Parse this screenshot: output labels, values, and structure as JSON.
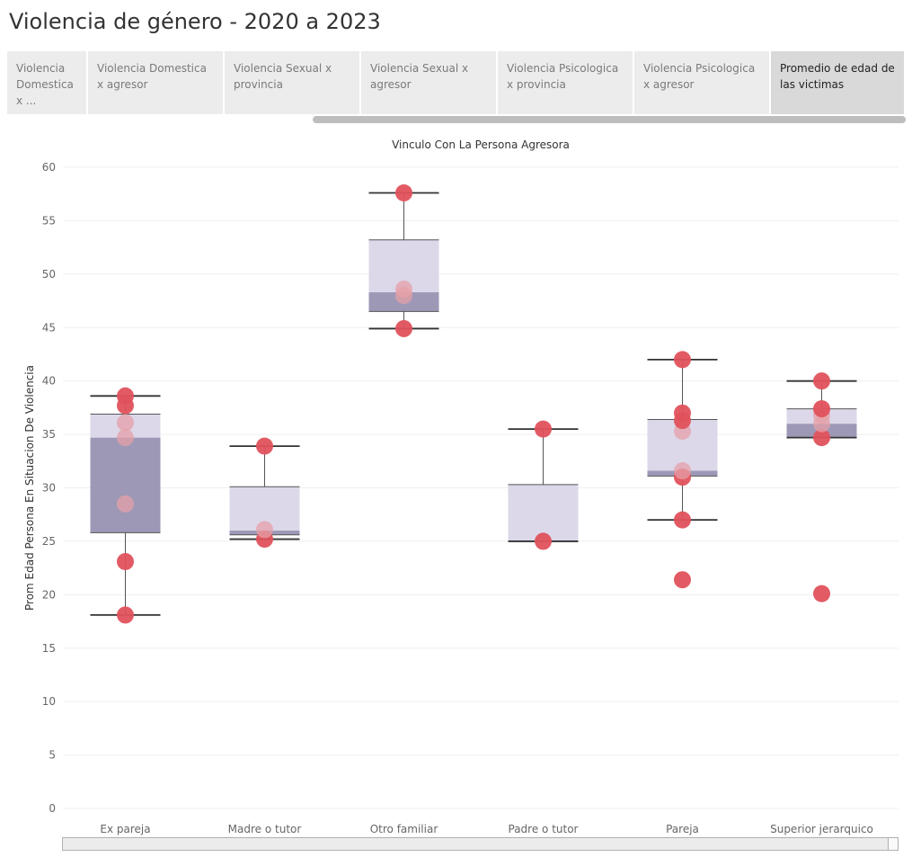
{
  "page": {
    "title": "Violencia de género - 2020 a 2023"
  },
  "tabs": [
    {
      "label": "Violencia Domestica x ...",
      "active": false,
      "width": 90
    },
    {
      "label": "Violencia Domestica x agresor",
      "active": false,
      "width": 152
    },
    {
      "label": "Violencia Sexual x provincia",
      "active": false,
      "width": 152
    },
    {
      "label": "Violencia Sexual x agresor",
      "active": false,
      "width": 152
    },
    {
      "label": "Violencia Psicologica x provincia",
      "active": false,
      "width": 152
    },
    {
      "label": "Violencia Psicologica x agresor",
      "active": false,
      "width": 152
    },
    {
      "label": "Promedio de edad de las victimas",
      "active": true,
      "width": 150
    }
  ],
  "chart_data": {
    "type": "boxplot",
    "title": "Vinculo Con La Persona Agresora",
    "ylabel": "Prom Edad Persona En Situacion De Violencia",
    "ylim": [
      0,
      60
    ],
    "yticks": [
      0,
      5,
      10,
      15,
      20,
      25,
      30,
      35,
      40,
      45,
      50,
      55,
      60
    ],
    "grid": true,
    "colors": {
      "upper_box": "#dcd8ea",
      "lower_box": "#9d98b6",
      "point": "#e0525c",
      "point_light": "#e6a0a8"
    },
    "categories": [
      {
        "name": "Ex pareja",
        "whisker_low": 18.1,
        "q1": 25.8,
        "median": 34.7,
        "q3": 36.9,
        "whisker_high": 38.6,
        "points": [
          18.1,
          23.1,
          28.5,
          34.7,
          36.1,
          37.7,
          38.6
        ]
      },
      {
        "name": "Madre o tutor",
        "whisker_low": 25.2,
        "q1": 25.6,
        "median": 26.0,
        "q3": 30.1,
        "whisker_high": 33.9,
        "points": [
          25.2,
          26.1,
          33.9
        ]
      },
      {
        "name": "Otro familiar",
        "whisker_low": 44.9,
        "q1": 46.5,
        "median": 48.3,
        "q3": 53.2,
        "whisker_high": 57.6,
        "points": [
          44.9,
          48.0,
          48.6,
          57.6
        ]
      },
      {
        "name": "Padre o tutor",
        "whisker_low": 25.0,
        "q1": 25.0,
        "median": 25.0,
        "q3": 30.3,
        "whisker_high": 35.5,
        "points": [
          25.0,
          35.5
        ]
      },
      {
        "name": "Pareja",
        "whisker_low": 27.0,
        "q1": 31.1,
        "median": 31.6,
        "q3": 36.4,
        "whisker_high": 42.0,
        "points": [
          21.4,
          27.0,
          31.0,
          31.6,
          35.3,
          36.3,
          37.0,
          42.0
        ]
      },
      {
        "name": "Superior jerarquico",
        "whisker_low": 34.7,
        "q1": 34.7,
        "median": 36.0,
        "q3": 37.4,
        "whisker_high": 40.0,
        "points": [
          20.1,
          34.7,
          36.0,
          36.8,
          37.4,
          40.0
        ]
      }
    ]
  }
}
